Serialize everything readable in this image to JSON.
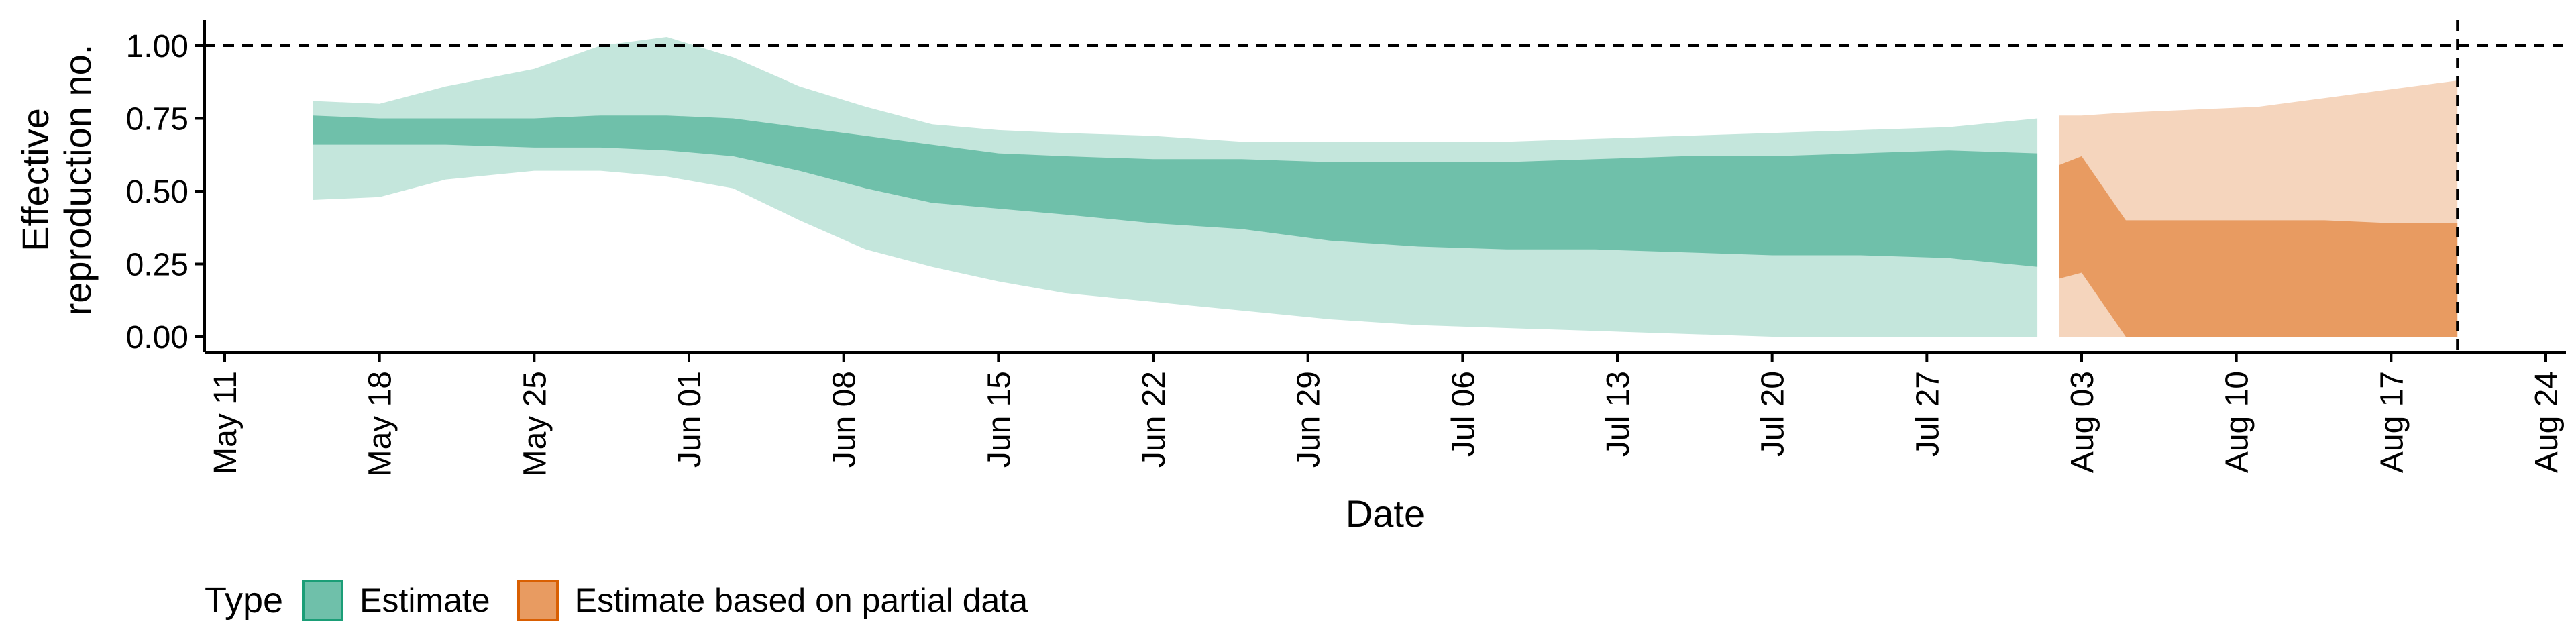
{
  "chart_data": {
    "type": "area",
    "xlabel": "Date",
    "ylabel": [
      "Effective",
      "reproduction no."
    ],
    "ylim": [
      0,
      1.05
    ],
    "xlim": [
      "2020-05-11",
      "2020-08-24"
    ],
    "x_ticks": [
      "May 11",
      "May 18",
      "May 25",
      "Jun 01",
      "Jun 08",
      "Jun 15",
      "Jun 22",
      "Jun 29",
      "Jul 06",
      "Jul 13",
      "Jul 20",
      "Jul 27",
      "Aug 03",
      "Aug 10",
      "Aug 17",
      "Aug 24"
    ],
    "y_ticks": [
      "0.00",
      "0.25",
      "0.50",
      "0.75",
      "1.00"
    ],
    "reference_hline": 1.0,
    "reference_vline": "2020-08-20",
    "grid": false,
    "legend": {
      "title": "Type",
      "position": "bottom-left",
      "entries": [
        {
          "label": "Estimate",
          "fill": "#6fc0aa",
          "border": "#1b9e77"
        },
        {
          "label": "Estimate based on partial data",
          "fill": "#e89b61",
          "border": "#d95f02"
        }
      ]
    },
    "series": [
      {
        "name": "Estimate",
        "colors": {
          "outer": "#c4e6dc",
          "inner": "#6fc0aa"
        },
        "x": [
          "2020-05-15",
          "2020-05-18",
          "2020-05-21",
          "2020-05-25",
          "2020-05-28",
          "2020-05-31",
          "2020-06-03",
          "2020-06-06",
          "2020-06-09",
          "2020-06-12",
          "2020-06-15",
          "2020-06-18",
          "2020-06-22",
          "2020-06-26",
          "2020-06-30",
          "2020-07-04",
          "2020-07-08",
          "2020-07-12",
          "2020-07-16",
          "2020-07-20",
          "2020-07-24",
          "2020-07-28",
          "2020-08-01"
        ],
        "lower_90": [
          0.47,
          0.48,
          0.54,
          0.57,
          0.57,
          0.55,
          0.51,
          0.4,
          0.3,
          0.24,
          0.19,
          0.15,
          0.12,
          0.09,
          0.06,
          0.04,
          0.03,
          0.02,
          0.01,
          0.0,
          0.0,
          0.0,
          0.0
        ],
        "upper_90": [
          0.81,
          0.8,
          0.86,
          0.92,
          1.0,
          1.03,
          0.96,
          0.86,
          0.79,
          0.73,
          0.71,
          0.7,
          0.69,
          0.67,
          0.67,
          0.67,
          0.67,
          0.68,
          0.69,
          0.7,
          0.71,
          0.72,
          0.75
        ],
        "lower_50": [
          0.66,
          0.66,
          0.66,
          0.65,
          0.65,
          0.64,
          0.62,
          0.57,
          0.51,
          0.46,
          0.44,
          0.42,
          0.39,
          0.37,
          0.33,
          0.31,
          0.3,
          0.3,
          0.29,
          0.28,
          0.28,
          0.27,
          0.24
        ],
        "upper_50": [
          0.76,
          0.75,
          0.75,
          0.75,
          0.76,
          0.76,
          0.75,
          0.72,
          0.69,
          0.66,
          0.63,
          0.62,
          0.61,
          0.61,
          0.6,
          0.6,
          0.6,
          0.61,
          0.62,
          0.62,
          0.63,
          0.64,
          0.63
        ]
      },
      {
        "name": "Estimate based on partial data",
        "colors": {
          "outer": "#f5d5bd",
          "inner": "#e89b61"
        },
        "x": [
          "2020-08-02",
          "2020-08-03",
          "2020-08-05",
          "2020-08-08",
          "2020-08-11",
          "2020-08-14",
          "2020-08-17",
          "2020-08-20"
        ],
        "lower_90": [
          0.0,
          0.0,
          0.0,
          0.0,
          0.0,
          0.0,
          0.0,
          0.0
        ],
        "upper_90": [
          0.76,
          0.76,
          0.77,
          0.78,
          0.79,
          0.82,
          0.85,
          0.88
        ],
        "lower_50": [
          0.2,
          0.22,
          0.0,
          0.0,
          0.0,
          0.0,
          0.0,
          0.0
        ],
        "upper_50": [
          0.59,
          0.62,
          0.4,
          0.4,
          0.4,
          0.4,
          0.39,
          0.39
        ]
      }
    ]
  }
}
